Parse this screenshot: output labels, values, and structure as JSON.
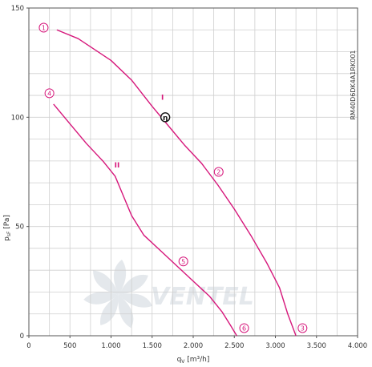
{
  "colors": {
    "curve": "#d6177b",
    "grid": "#cfcfcf",
    "axis": "#555555",
    "text": "#333333",
    "watermark": "#e4e8ec"
  },
  "model_code": "RM40D6DK4A1RK001",
  "watermark": {
    "logo_text": "VENTEL",
    "icon": "fan-blades-icon"
  },
  "chart_data": {
    "type": "line",
    "title": "",
    "xlabel": "q",
    "xlabel_sub": "V",
    "xlabel_unit": "[m³/h]",
    "ylabel": "p",
    "ylabel_sub": "sF",
    "ylabel_unit": "[Pa]",
    "xlim": [
      0,
      4000
    ],
    "ylim": [
      0,
      150
    ],
    "x_ticks": [
      0,
      500,
      1000,
      1500,
      2000,
      2500,
      3000,
      3500,
      4000
    ],
    "x_tick_labels": [
      "0",
      "500",
      "1.000",
      "1.500",
      "2.000",
      "2.500",
      "3.000",
      "3.500",
      "4.000"
    ],
    "y_ticks": [
      0,
      50,
      100,
      150
    ],
    "y_tick_labels": [
      "0",
      "50",
      "100",
      "150"
    ],
    "grid": true,
    "series": [
      {
        "name": "I",
        "label_at": [
          1610,
          108
        ],
        "points": [
          [
            340,
            140
          ],
          [
            600,
            136
          ],
          [
            1000,
            126
          ],
          [
            1250,
            117
          ],
          [
            1500,
            105
          ],
          [
            1700,
            96
          ],
          [
            1900,
            87
          ],
          [
            2100,
            79
          ],
          [
            2300,
            69
          ],
          [
            2500,
            58
          ],
          [
            2700,
            46
          ],
          [
            2900,
            33
          ],
          [
            3050,
            22
          ],
          [
            3150,
            10
          ],
          [
            3250,
            0
          ]
        ]
      },
      {
        "name": "II",
        "label_at": [
          1040,
          77
        ],
        "points": [
          [
            300,
            106
          ],
          [
            500,
            97
          ],
          [
            700,
            88
          ],
          [
            900,
            80
          ],
          [
            1050,
            73
          ],
          [
            1150,
            64
          ],
          [
            1250,
            55
          ],
          [
            1400,
            46
          ],
          [
            1600,
            39
          ],
          [
            1800,
            32
          ],
          [
            2000,
            25
          ],
          [
            2200,
            18
          ],
          [
            2350,
            11
          ],
          [
            2450,
            5
          ],
          [
            2530,
            0
          ]
        ]
      }
    ],
    "markers": [
      {
        "label": "1",
        "x": 180,
        "y": 141
      },
      {
        "label": "2",
        "x": 2310,
        "y": 75
      },
      {
        "label": "3",
        "x": 3330,
        "y": 3.5
      },
      {
        "label": "4",
        "x": 250,
        "y": 111
      },
      {
        "label": "5",
        "x": 1880,
        "y": 34
      },
      {
        "label": "6",
        "x": 2620,
        "y": 3.5
      }
    ],
    "operating_point": {
      "symbol": "η",
      "x": 1660,
      "y": 100
    }
  }
}
